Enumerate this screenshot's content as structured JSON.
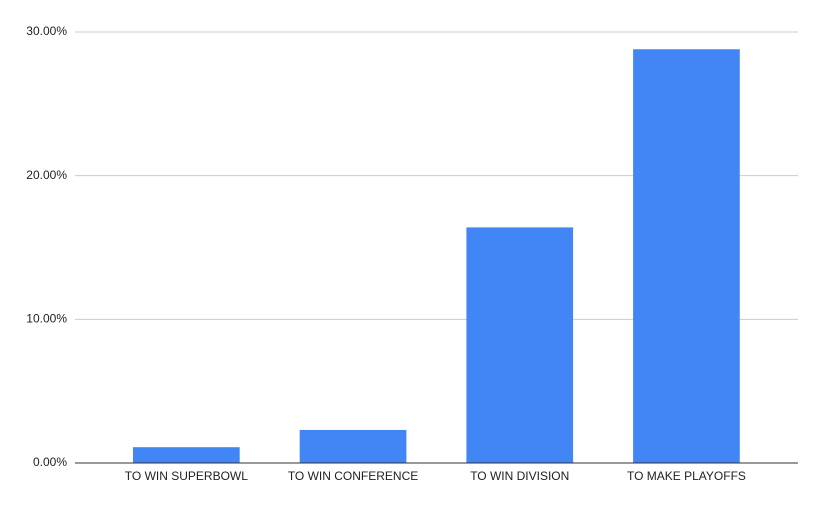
{
  "chart_data": {
    "type": "bar",
    "categories": [
      "TO WIN SUPERBOWL",
      "TO WIN CONFERENCE",
      "TO WIN DIVISION",
      "TO MAKE PLAYOFFS"
    ],
    "values": [
      1.1,
      2.3,
      16.4,
      28.8
    ],
    "color": "#4285f4",
    "ylim": [
      0,
      30
    ],
    "yticks": [
      {
        "value": 0,
        "label": "0.00%"
      },
      {
        "value": 10,
        "label": "10.00%"
      },
      {
        "value": 20,
        "label": "20.00%"
      },
      {
        "value": 30,
        "label": "30.00%"
      }
    ],
    "grid": true
  }
}
